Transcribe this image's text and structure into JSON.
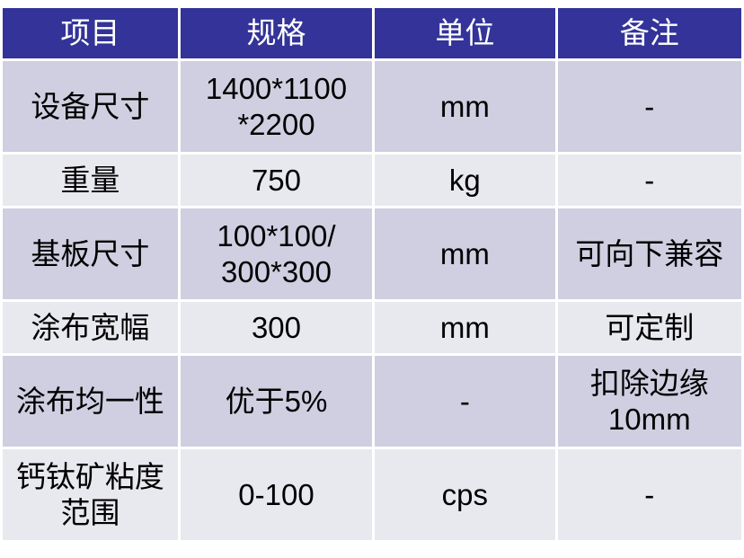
{
  "headers": [
    "项目",
    "规格",
    "单位",
    "备注"
  ],
  "rows": [
    {
      "item": "设备尺寸",
      "spec": "1400*1100 *2200",
      "unit": "mm",
      "note": "-"
    },
    {
      "item": "重量",
      "spec": "750",
      "unit": "kg",
      "note": "-"
    },
    {
      "item": "基板尺寸",
      "spec": "100*100/ 300*300",
      "unit": "mm",
      "note": "可向下兼容"
    },
    {
      "item": "涂布宽幅",
      "spec": "300",
      "unit": "mm",
      "note": "可定制"
    },
    {
      "item": "涂布均一性",
      "spec": "优于5%",
      "unit": "-",
      "note": "扣除边缘10mm"
    },
    {
      "item": "钙钛矿粘度范围",
      "spec": "0-100",
      "unit": "cps",
      "note": "-"
    }
  ],
  "colors": {
    "header": "#333399",
    "row_odd": "#cfcfe1",
    "row_even": "#e8e8ef"
  }
}
